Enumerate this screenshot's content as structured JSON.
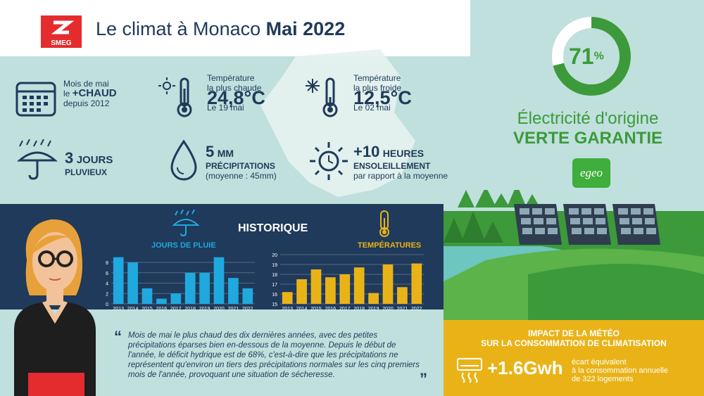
{
  "header": {
    "logo_text": "SMEG",
    "title_prefix": "Le climat à Monaco",
    "title_highlight": "Mai 2022"
  },
  "stats": {
    "hot_month": {
      "line1": "Mois de mai",
      "line2_prefix": "le",
      "line2_bold": "+CHAUD",
      "line3": "depuis 2012"
    },
    "max_temp": {
      "label1": "Température",
      "label2": "la plus chaude",
      "value": "24,8°C",
      "date": "Le 19 mai"
    },
    "min_temp": {
      "label1": "Température",
      "label2": "la plus froide",
      "value": "12,5°C",
      "date": "Le 02 mai"
    },
    "rain_days": {
      "value": "3",
      "unit": "JOURS",
      "label": "PLUVIEUX"
    },
    "precip": {
      "value": "5",
      "unit": "MM",
      "label": "PRÉCIPITATIONS",
      "sub": "(moyenne : 45mm)"
    },
    "sun": {
      "value": "+10",
      "unit": "HEURES",
      "label": "ENSOLEILLEMENT",
      "sub": "par rapport à la moyenne"
    }
  },
  "green": {
    "percent": "71",
    "percent_sign": "%",
    "percent_value": 0.71,
    "line1": "Électricité d'origine",
    "line2": "VERTE GARANTIE",
    "brand": "egeo"
  },
  "historique": {
    "title": "HISTORIQUE",
    "rain_chart_title": "JOURS DE PLUIE",
    "temp_chart_title": "TEMPÉRATURES"
  },
  "chart_data": [
    {
      "type": "bar",
      "title": "JOURS DE PLUIE",
      "categories": [
        "2013",
        "2014",
        "2015",
        "2016",
        "2017",
        "2018",
        "2019",
        "2020",
        "2021",
        "2022"
      ],
      "values": [
        9,
        8,
        3,
        1,
        2,
        6,
        6,
        9,
        5,
        3
      ],
      "yticks": [
        "0",
        "2",
        "4",
        "6",
        "8"
      ],
      "ylim": [
        0,
        9.5
      ],
      "grid": true
    },
    {
      "type": "bar",
      "title": "TEMPÉRATURES",
      "categories": [
        "2013",
        "2014",
        "2015",
        "2016",
        "2017",
        "2018",
        "2019",
        "2020",
        "2021",
        "2022"
      ],
      "values": [
        16.2,
        17.5,
        18.5,
        17.7,
        18.0,
        18.7,
        16.1,
        19.0,
        16.7,
        19.1
      ],
      "yticks": [
        "15",
        "16",
        "17",
        "18",
        "19",
        "20"
      ],
      "ylim": [
        15,
        20
      ],
      "grid": true
    }
  ],
  "quote": {
    "text": "Mois de mai le plus chaud des dix dernières années, avec des petites précipitations éparses bien en-dessous de la moyenne. Depuis le début de l'année, le déficit hydrique est de 68%, c'est-à-dire que les précipitations ne représentent qu'environ un tiers des précipitations normales sur les cinq premiers mois de l'année, provoquant une situation de sécheresse."
  },
  "impact": {
    "title1": "IMPACT DE LA MÉTÉO",
    "title2": "SUR LA CONSOMMATION DE CLIMATISATION",
    "value": "+1.6Gwh",
    "desc1": "écart équivalent",
    "desc2": "à la consommation annuelle",
    "desc3": "de 322 logements"
  },
  "colors": {
    "navy": "#1f3a5a",
    "teal_bg": "#bfe0dd",
    "green": "#3c9a3a",
    "blue_bar": "#1fa9df",
    "yellow": "#e9b318",
    "red": "#e42b2e"
  }
}
